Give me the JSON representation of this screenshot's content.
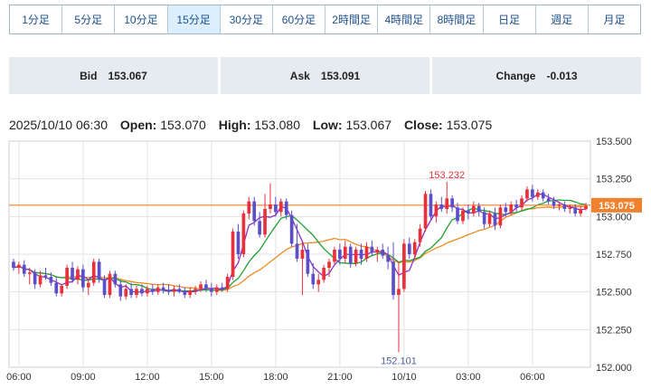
{
  "timeframes": [
    "1分足",
    "5分足",
    "10分足",
    "15分足",
    "30分足",
    "60分足",
    "2時間足",
    "4時間足",
    "8時間足",
    "日足",
    "週足",
    "月足"
  ],
  "active_timeframe": "15分足",
  "quotes": [
    {
      "label": "Bid",
      "value": "153.067"
    },
    {
      "label": "Ask",
      "value": "153.091"
    },
    {
      "label": "Change",
      "value": "-0.013"
    }
  ],
  "ohlc": {
    "datetime": "2025/10/10 06:30",
    "open_label": "Open:",
    "open": "153.070",
    "high_label": "High:",
    "high": "153.080",
    "low_label": "Low:",
    "low": "153.067",
    "close_label": "Close:",
    "close": "153.075"
  },
  "colors": {
    "up": "#e8313b",
    "down": "#5b4fc9",
    "price_line": "#f0822e",
    "ma_fast": "#8e2fc4",
    "ma_mid": "#1fa032",
    "ma_slow": "#f08a23"
  },
  "chart_data": {
    "type": "candlestick",
    "ylim": [
      152.0,
      153.5
    ],
    "y_ticks": [
      "153.500",
      "153.250",
      "153.000",
      "152.750",
      "152.500",
      "152.250",
      "152.000"
    ],
    "x_ticks": [
      "06:00",
      "09:00",
      "12:00",
      "15:00",
      "18:00",
      "21:00",
      "10/10",
      "03:00",
      "06:00"
    ],
    "current_price": "153.075",
    "annotations": {
      "high": "153.232",
      "low": "152.101"
    },
    "candles": [
      [
        152.7,
        152.72,
        152.64,
        152.66
      ],
      [
        152.66,
        152.7,
        152.62,
        152.68
      ],
      [
        152.68,
        152.71,
        152.6,
        152.62
      ],
      [
        152.62,
        152.66,
        152.55,
        152.63
      ],
      [
        152.63,
        152.65,
        152.52,
        152.55
      ],
      [
        152.55,
        152.64,
        152.53,
        152.61
      ],
      [
        152.61,
        152.66,
        152.58,
        152.6
      ],
      [
        152.6,
        152.63,
        152.54,
        152.56
      ],
      [
        152.56,
        152.6,
        152.47,
        152.49
      ],
      [
        152.49,
        152.55,
        152.47,
        152.54
      ],
      [
        152.54,
        152.68,
        152.52,
        152.66
      ],
      [
        152.66,
        152.7,
        152.56,
        152.58
      ],
      [
        152.58,
        152.67,
        152.55,
        152.65
      ],
      [
        152.65,
        152.68,
        152.5,
        152.53
      ],
      [
        152.53,
        152.58,
        152.48,
        152.56
      ],
      [
        152.56,
        152.72,
        152.54,
        152.7
      ],
      [
        152.7,
        152.72,
        152.56,
        152.58
      ],
      [
        152.58,
        152.61,
        152.46,
        152.48
      ],
      [
        152.48,
        152.64,
        152.46,
        152.62
      ],
      [
        152.62,
        152.64,
        152.53,
        152.55
      ],
      [
        152.55,
        152.58,
        152.44,
        152.47
      ],
      [
        152.47,
        152.55,
        152.45,
        152.52
      ],
      [
        152.52,
        152.56,
        152.46,
        152.48
      ],
      [
        152.48,
        152.54,
        152.46,
        152.52
      ],
      [
        152.52,
        152.55,
        152.47,
        152.49
      ],
      [
        152.49,
        152.54,
        152.47,
        152.52
      ],
      [
        152.52,
        152.55,
        152.48,
        152.5
      ],
      [
        152.5,
        152.55,
        152.48,
        152.53
      ],
      [
        152.53,
        152.56,
        152.49,
        152.51
      ],
      [
        152.51,
        152.55,
        152.48,
        152.5
      ],
      [
        152.5,
        152.54,
        152.47,
        152.52
      ],
      [
        152.52,
        152.55,
        152.49,
        152.5
      ],
      [
        152.5,
        152.53,
        152.46,
        152.48
      ],
      [
        152.48,
        152.53,
        152.46,
        152.51
      ],
      [
        152.51,
        152.54,
        152.48,
        152.52
      ],
      [
        152.52,
        152.57,
        152.5,
        152.55
      ],
      [
        152.55,
        152.58,
        152.5,
        152.52
      ],
      [
        152.52,
        152.56,
        152.47,
        152.5
      ],
      [
        152.5,
        152.55,
        152.48,
        152.53
      ],
      [
        152.53,
        152.56,
        152.5,
        152.52
      ],
      [
        152.52,
        152.62,
        152.5,
        152.6
      ],
      [
        152.6,
        152.92,
        152.58,
        152.9
      ],
      [
        152.9,
        152.95,
        152.72,
        152.75
      ],
      [
        152.75,
        153.04,
        152.73,
        153.02
      ],
      [
        153.02,
        153.13,
        152.98,
        153.1
      ],
      [
        153.1,
        153.13,
        152.94,
        152.97
      ],
      [
        152.97,
        153.03,
        152.86,
        152.88
      ],
      [
        152.88,
        153.15,
        152.86,
        153.05
      ],
      [
        153.05,
        153.22,
        153.02,
        153.08
      ],
      [
        153.08,
        153.13,
        153.0,
        153.03
      ],
      [
        153.03,
        153.12,
        153.0,
        153.1
      ],
      [
        153.1,
        153.12,
        152.98,
        153.01
      ],
      [
        153.01,
        153.04,
        152.8,
        152.82
      ],
      [
        152.82,
        152.95,
        152.7,
        152.72
      ],
      [
        152.72,
        152.83,
        152.48,
        152.78
      ],
      [
        152.78,
        152.82,
        152.6,
        152.62
      ],
      [
        152.62,
        152.69,
        152.52,
        152.55
      ],
      [
        152.55,
        152.62,
        152.5,
        152.58
      ],
      [
        152.58,
        152.68,
        152.56,
        152.66
      ],
      [
        152.66,
        152.72,
        152.6,
        152.7
      ],
      [
        152.7,
        152.8,
        152.68,
        152.78
      ],
      [
        152.78,
        152.82,
        152.68,
        152.72
      ],
      [
        152.72,
        152.84,
        152.69,
        152.8
      ],
      [
        152.8,
        152.82,
        152.66,
        152.69
      ],
      [
        152.69,
        152.8,
        152.67,
        152.78
      ],
      [
        152.78,
        152.82,
        152.68,
        152.72
      ],
      [
        152.72,
        152.83,
        152.7,
        152.8
      ],
      [
        152.8,
        152.84,
        152.74,
        152.76
      ],
      [
        152.76,
        152.8,
        152.7,
        152.78
      ],
      [
        152.78,
        152.82,
        152.72,
        152.74
      ],
      [
        152.74,
        152.8,
        152.65,
        152.7
      ],
      [
        152.7,
        152.83,
        152.45,
        152.48
      ],
      [
        152.48,
        152.7,
        152.1,
        152.52
      ],
      [
        152.52,
        152.85,
        152.5,
        152.82
      ],
      [
        152.82,
        152.86,
        152.72,
        152.75
      ],
      [
        152.75,
        152.85,
        152.72,
        152.83
      ],
      [
        152.83,
        152.95,
        152.8,
        152.92
      ],
      [
        152.92,
        153.17,
        152.9,
        153.15
      ],
      [
        153.15,
        153.18,
        152.98,
        153.0
      ],
      [
        153.0,
        153.1,
        152.96,
        153.08
      ],
      [
        153.08,
        153.13,
        153.03,
        153.05
      ],
      [
        153.05,
        153.23,
        153.02,
        153.12
      ],
      [
        153.12,
        153.14,
        153.03,
        153.06
      ],
      [
        153.06,
        153.09,
        152.95,
        152.97
      ],
      [
        152.97,
        153.06,
        152.95,
        153.04
      ],
      [
        153.04,
        153.08,
        152.98,
        153.02
      ],
      [
        153.02,
        153.1,
        153.0,
        153.07
      ],
      [
        153.07,
        153.09,
        153.0,
        153.03
      ],
      [
        153.03,
        153.06,
        152.92,
        152.95
      ],
      [
        152.95,
        153.04,
        152.93,
        153.02
      ],
      [
        153.02,
        153.06,
        152.91,
        152.94
      ],
      [
        152.94,
        153.08,
        152.92,
        153.06
      ],
      [
        153.06,
        153.09,
        153.0,
        153.03
      ],
      [
        153.03,
        153.1,
        153.01,
        153.08
      ],
      [
        153.08,
        153.11,
        153.03,
        153.06
      ],
      [
        153.06,
        153.14,
        153.04,
        153.12
      ],
      [
        153.12,
        153.2,
        153.1,
        153.18
      ],
      [
        153.18,
        153.21,
        153.1,
        153.13
      ],
      [
        153.13,
        153.18,
        153.11,
        153.16
      ],
      [
        153.16,
        153.18,
        153.1,
        153.12
      ],
      [
        153.12,
        153.15,
        153.08,
        153.1
      ],
      [
        153.1,
        153.13,
        153.05,
        153.07
      ],
      [
        153.07,
        153.1,
        153.04,
        153.08
      ],
      [
        153.08,
        153.1,
        153.03,
        153.05
      ],
      [
        153.05,
        153.08,
        153.02,
        153.06
      ],
      [
        153.06,
        153.08,
        153.0,
        153.02
      ],
      [
        153.02,
        153.07,
        153.0,
        153.05
      ],
      [
        153.05,
        153.09,
        153.04,
        153.07
      ]
    ]
  }
}
